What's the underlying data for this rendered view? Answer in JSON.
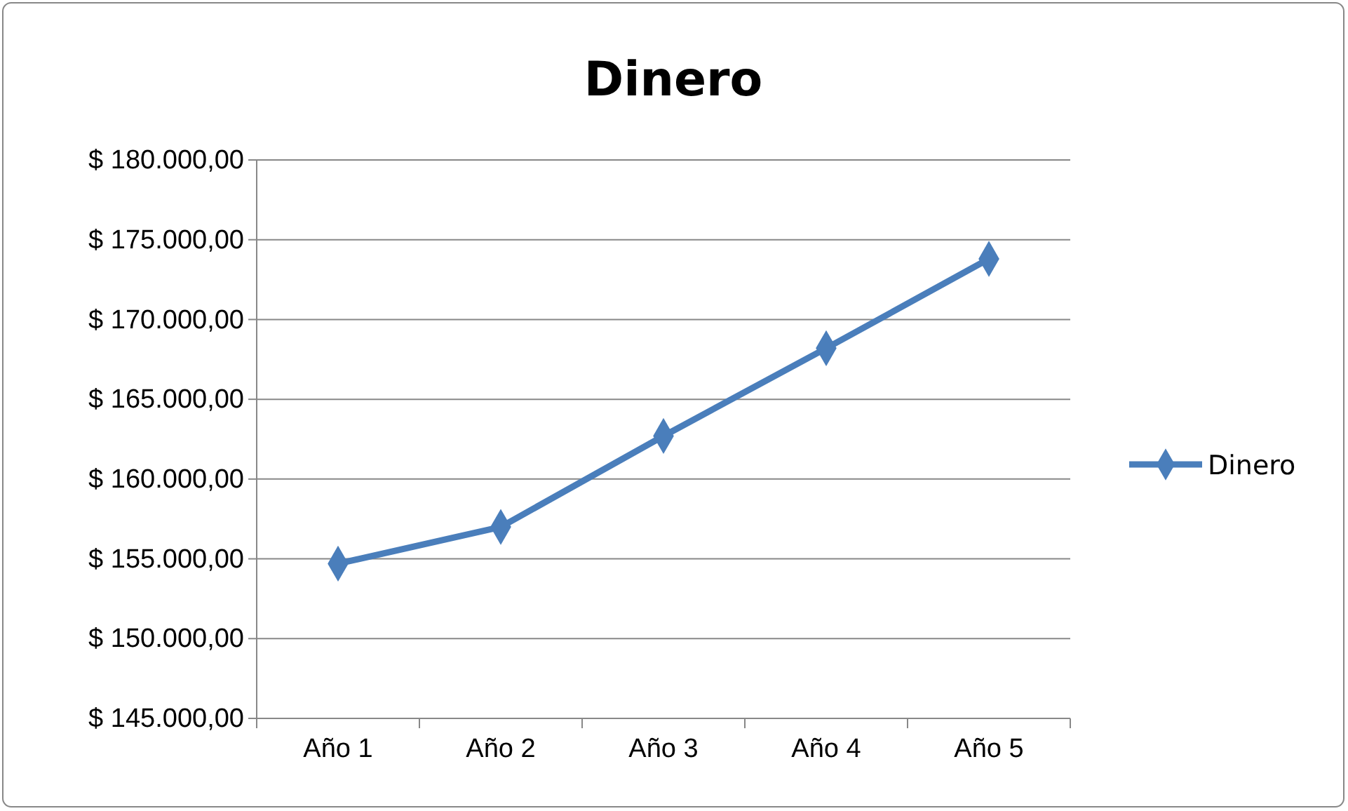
{
  "chart_data": {
    "type": "line",
    "title": "Dinero",
    "categories": [
      "Año 1",
      "Año 2",
      "Año 3",
      "Año 4",
      "Año 5"
    ],
    "series": [
      {
        "name": "Dinero",
        "color": "#4a7ebb",
        "values": [
          154700,
          157000,
          162700,
          168200,
          173800
        ]
      }
    ],
    "ylim": [
      145000,
      180000
    ],
    "yticks": [
      {
        "value": 145000,
        "label": "$ 145.000,00"
      },
      {
        "value": 150000,
        "label": "$ 150.000,00"
      },
      {
        "value": 155000,
        "label": "$ 155.000,00"
      },
      {
        "value": 160000,
        "label": "$ 160.000,00"
      },
      {
        "value": 165000,
        "label": "$ 165.000,00"
      },
      {
        "value": 170000,
        "label": "$ 170.000,00"
      },
      {
        "value": 175000,
        "label": "$ 175.000,00"
      },
      {
        "value": 180000,
        "label": "$ 180.000,00"
      }
    ],
    "grid": "y",
    "legend": "right",
    "marker": "diamond",
    "line_style": "solid"
  }
}
